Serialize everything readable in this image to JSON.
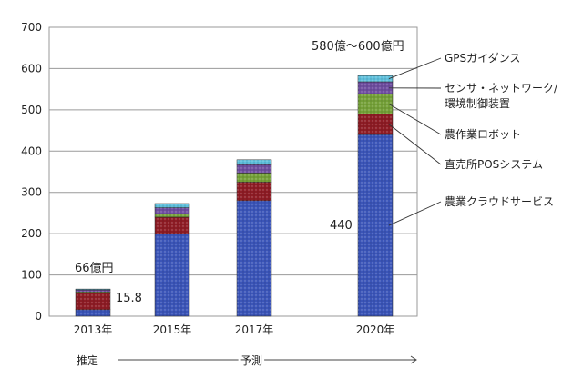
{
  "chart_data": {
    "type": "bar",
    "stacked": true,
    "categories": [
      "2013年",
      "2015年",
      "2017年",
      "2020年"
    ],
    "ylim": [
      0,
      700
    ],
    "yticks": [
      0,
      100,
      200,
      300,
      400,
      500,
      600,
      700
    ],
    "grid": true,
    "series": [
      {
        "name": "農業クラウドサービス",
        "color": "#3b55b8",
        "values": [
          15.8,
          200,
          280,
          440
        ]
      },
      {
        "name": "直売所POSシステム",
        "color": "#8e1c25",
        "values": [
          40,
          40,
          45,
          50
        ]
      },
      {
        "name": "農作業ロボット",
        "color": "#74a038",
        "values": [
          3,
          8,
          22,
          48
        ]
      },
      {
        "name": "センサ・ネットワーク/\n環境制御装置",
        "color": "#6f4ea0",
        "values": [
          5,
          15,
          20,
          30
        ]
      },
      {
        "name": "GPSガイダンス",
        "color": "#5fc0dc",
        "values": [
          2,
          10,
          12,
          15
        ]
      }
    ],
    "annotations": {
      "total_2013": "66億円",
      "value_2013_cloud": "15.8",
      "total_2020": "580億～600億円",
      "value_2020_cloud": "440"
    },
    "footer": {
      "estimate": "推定",
      "forecast": "予測"
    }
  }
}
